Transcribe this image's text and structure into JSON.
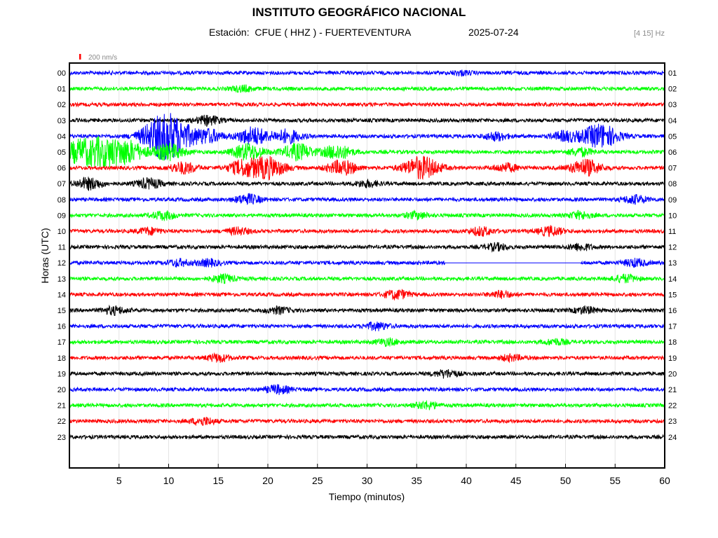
{
  "header": {
    "title": "INSTITUTO GEOGRÁFICO NACIONAL",
    "station_line": "Estación:  CFUE ( HHZ ) - FUERTEVENTURA",
    "date": "2025-07-24",
    "filter": "[4 15] Hz"
  },
  "chart_data": {
    "type": "line",
    "xlabel": "Tiempo (minutos)",
    "ylabel": "Horas (UTC)",
    "xlim": [
      0,
      60
    ],
    "x_ticks": [
      5,
      10,
      15,
      20,
      25,
      30,
      35,
      40,
      45,
      50,
      55,
      60
    ],
    "x_tick_labels": [
      "5",
      "10",
      "15",
      "20",
      "25",
      "30",
      "35",
      "40",
      "45",
      "50",
      "55",
      "60"
    ],
    "left_labels": [
      "00",
      "01",
      "02",
      "03",
      "04",
      "05",
      "06",
      "07",
      "08",
      "09",
      "10",
      "11",
      "12",
      "13",
      "14",
      "15",
      "16",
      "17",
      "18",
      "19",
      "20",
      "21",
      "22",
      "23"
    ],
    "right_labels": [
      "01",
      "02",
      "03",
      "04",
      "05",
      "06",
      "07",
      "08",
      "09",
      "10",
      "11",
      "12",
      "13",
      "14",
      "15",
      "16",
      "17",
      "18",
      "19",
      "20",
      "21",
      "22",
      "23",
      "24"
    ],
    "grid": true,
    "scale_bar_label": "200 nm/s",
    "trace_colors": [
      "#0000ff",
      "#00ff00",
      "#ff0000",
      "#000000"
    ],
    "events": [
      {
        "hour": 0,
        "minute": 39.5,
        "amp": 0.25
      },
      {
        "hour": 1,
        "minute": 17.5,
        "amp": 0.35
      },
      {
        "hour": 3,
        "minute": 14,
        "amp": 0.55
      },
      {
        "hour": 4,
        "minute": 9,
        "amp": 1.6
      },
      {
        "hour": 4,
        "minute": 10.5,
        "amp": 1.9
      },
      {
        "hour": 4,
        "minute": 14,
        "amp": 0.8
      },
      {
        "hour": 4,
        "minute": 18.5,
        "amp": 1.1
      },
      {
        "hour": 4,
        "minute": 22,
        "amp": 0.8
      },
      {
        "hour": 4,
        "minute": 43,
        "amp": 0.5
      },
      {
        "hour": 4,
        "minute": 50,
        "amp": 0.6
      },
      {
        "hour": 4,
        "minute": 53.5,
        "amp": 1.5
      },
      {
        "hour": 5,
        "minute": 1,
        "amp": 1.3
      },
      {
        "hour": 5,
        "minute": 3.5,
        "amp": 1.6
      },
      {
        "hour": 5,
        "minute": 6,
        "amp": 1.2
      },
      {
        "hour": 5,
        "minute": 10,
        "amp": 1.0
      },
      {
        "hour": 5,
        "minute": 18,
        "amp": 1.0
      },
      {
        "hour": 5,
        "minute": 23,
        "amp": 1.0
      },
      {
        "hour": 5,
        "minute": 27,
        "amp": 0.9
      },
      {
        "hour": 5,
        "minute": 51.5,
        "amp": 0.5
      },
      {
        "hour": 6,
        "minute": 11.5,
        "amp": 0.7
      },
      {
        "hour": 6,
        "minute": 17.5,
        "amp": 0.9
      },
      {
        "hour": 6,
        "minute": 20,
        "amp": 1.3
      },
      {
        "hour": 6,
        "minute": 27.5,
        "amp": 0.9
      },
      {
        "hour": 6,
        "minute": 35.5,
        "amp": 1.4
      },
      {
        "hour": 6,
        "minute": 44,
        "amp": 0.5
      },
      {
        "hour": 6,
        "minute": 52,
        "amp": 1.0
      },
      {
        "hour": 7,
        "minute": 2,
        "amp": 0.7
      },
      {
        "hour": 7,
        "minute": 8,
        "amp": 0.6
      },
      {
        "hour": 7,
        "minute": 30,
        "amp": 0.4
      },
      {
        "hour": 8,
        "minute": 18,
        "amp": 0.6
      },
      {
        "hour": 8,
        "minute": 57,
        "amp": 0.5
      },
      {
        "hour": 9,
        "minute": 9.5,
        "amp": 0.5
      },
      {
        "hour": 9,
        "minute": 35,
        "amp": 0.4
      },
      {
        "hour": 9,
        "minute": 51.5,
        "amp": 0.45
      },
      {
        "hour": 10,
        "minute": 8,
        "amp": 0.4
      },
      {
        "hour": 10,
        "minute": 17,
        "amp": 0.4
      },
      {
        "hour": 10,
        "minute": 41.5,
        "amp": 0.5
      },
      {
        "hour": 10,
        "minute": 48.5,
        "amp": 0.55
      },
      {
        "hour": 11,
        "minute": 43,
        "amp": 0.4
      },
      {
        "hour": 11,
        "minute": 51.5,
        "amp": 0.4
      },
      {
        "hour": 12,
        "minute": 11,
        "amp": 0.4
      },
      {
        "hour": 12,
        "minute": 14,
        "amp": 0.4
      },
      {
        "hour": 12,
        "minute": 57,
        "amp": 0.45
      },
      {
        "hour": 13,
        "minute": 15.5,
        "amp": 0.45
      },
      {
        "hour": 13,
        "minute": 56,
        "amp": 0.45
      },
      {
        "hour": 14,
        "minute": 33,
        "amp": 0.55
      },
      {
        "hour": 14,
        "minute": 43.5,
        "amp": 0.4
      },
      {
        "hour": 15,
        "minute": 4.5,
        "amp": 0.45
      },
      {
        "hour": 15,
        "minute": 21,
        "amp": 0.4
      },
      {
        "hour": 15,
        "minute": 52,
        "amp": 0.4
      },
      {
        "hour": 16,
        "minute": 31,
        "amp": 0.45
      },
      {
        "hour": 17,
        "minute": 32,
        "amp": 0.4
      },
      {
        "hour": 17,
        "minute": 49,
        "amp": 0.35
      },
      {
        "hour": 18,
        "minute": 15,
        "amp": 0.45
      },
      {
        "hour": 18,
        "minute": 44.5,
        "amp": 0.35
      },
      {
        "hour": 19,
        "minute": 38,
        "amp": 0.45
      },
      {
        "hour": 20,
        "minute": 21,
        "amp": 0.5
      },
      {
        "hour": 21,
        "minute": 36,
        "amp": 0.45
      },
      {
        "hour": 22,
        "minute": 13.5,
        "amp": 0.45
      }
    ],
    "gaps": [
      {
        "hour": 12,
        "from": 37.8,
        "to": 51.6
      }
    ]
  }
}
